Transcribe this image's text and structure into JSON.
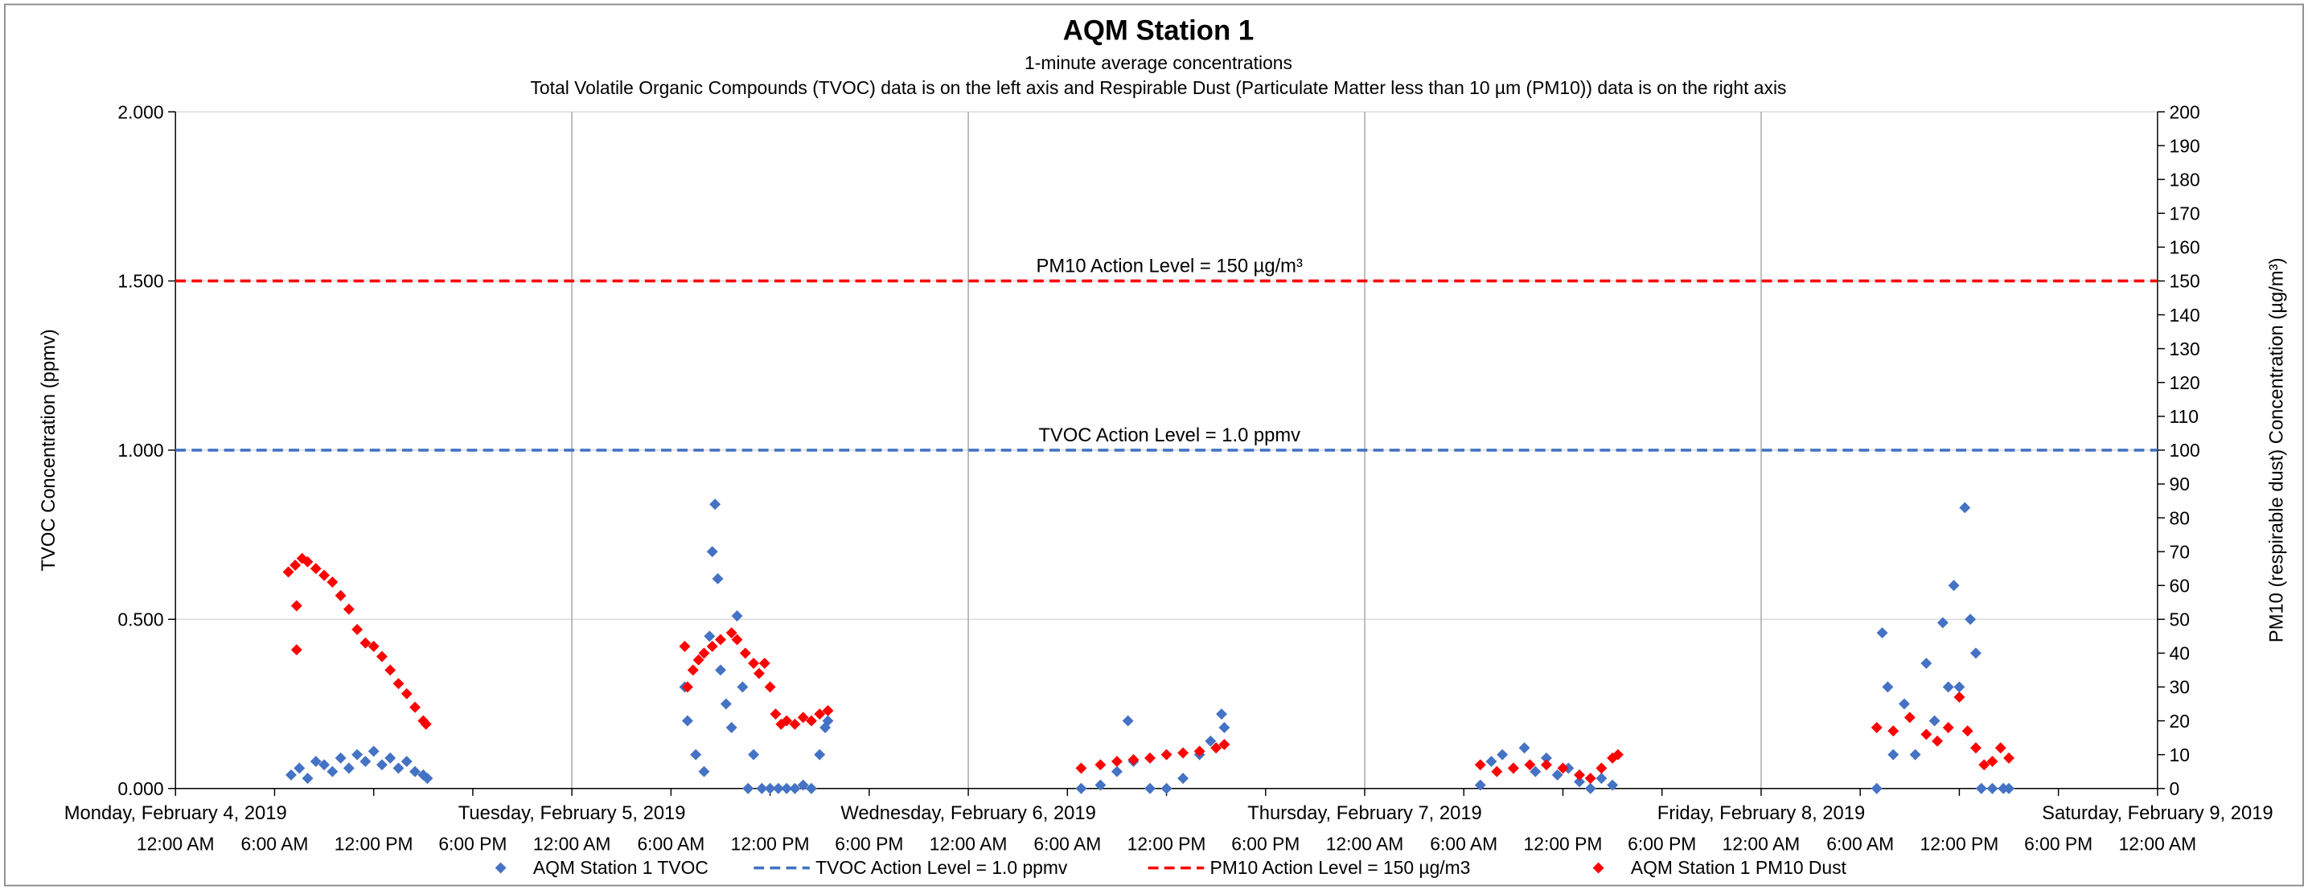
{
  "chart_data": {
    "type": "scatter",
    "title": "AQM Station 1",
    "subtitle": "1-minute average concentrations",
    "note": "Total Volatile Organic Compounds (TVOC) data is on the left axis and Respirable Dust (Particulate Matter less than 10 µm (PM10)) data is on the right axis",
    "y_label": "TVOC Concentration (ppmv)",
    "y2_label": "PM10 (respirable dust) Concentration (µg/m³)",
    "xlim": [
      "2019-02-04 00:00",
      "2019-02-09 00:00"
    ],
    "x_date_labels": [
      {
        "value": "2019-02-04 00:00",
        "label": "Monday, February 4, 2019"
      },
      {
        "value": "2019-02-05 00:00",
        "label": "Tuesday, February 5, 2019"
      },
      {
        "value": "2019-02-06 00:00",
        "label": "Wednesday, February 6, 2019"
      },
      {
        "value": "2019-02-07 00:00",
        "label": "Thursday, February 7, 2019"
      },
      {
        "value": "2019-02-08 00:00",
        "label": "Friday, February 8, 2019"
      },
      {
        "value": "2019-02-09 00:00",
        "label": "Saturday, February 9, 2019"
      }
    ],
    "xticks": [
      {
        "value": "2019-02-04 00:00",
        "label": "12:00 AM"
      },
      {
        "value": "2019-02-04 06:00",
        "label": "6:00 AM"
      },
      {
        "value": "2019-02-04 12:00",
        "label": "12:00 PM"
      },
      {
        "value": "2019-02-04 18:00",
        "label": "6:00 PM"
      },
      {
        "value": "2019-02-05 00:00",
        "label": "12:00 AM"
      },
      {
        "value": "2019-02-05 06:00",
        "label": "6:00 AM"
      },
      {
        "value": "2019-02-05 12:00",
        "label": "12:00 PM"
      },
      {
        "value": "2019-02-05 18:00",
        "label": "6:00 PM"
      },
      {
        "value": "2019-02-06 00:00",
        "label": "12:00 AM"
      },
      {
        "value": "2019-02-06 06:00",
        "label": "6:00 AM"
      },
      {
        "value": "2019-02-06 12:00",
        "label": "12:00 PM"
      },
      {
        "value": "2019-02-06 18:00",
        "label": "6:00 PM"
      },
      {
        "value": "2019-02-07 00:00",
        "label": "12:00 AM"
      },
      {
        "value": "2019-02-07 06:00",
        "label": "6:00 AM"
      },
      {
        "value": "2019-02-07 12:00",
        "label": "12:00 PM"
      },
      {
        "value": "2019-02-07 18:00",
        "label": "6:00 PM"
      },
      {
        "value": "2019-02-08 00:00",
        "label": "12:00 AM"
      },
      {
        "value": "2019-02-08 06:00",
        "label": "6:00 AM"
      },
      {
        "value": "2019-02-08 12:00",
        "label": "12:00 PM"
      },
      {
        "value": "2019-02-08 18:00",
        "label": "6:00 PM"
      },
      {
        "value": "2019-02-09 00:00",
        "label": "12:00 AM"
      }
    ],
    "ylim": [
      0,
      2
    ],
    "yticks": [
      {
        "value": 0,
        "label": "0.000"
      },
      {
        "value": 0.5,
        "label": "0.500"
      },
      {
        "value": 1,
        "label": "1.000"
      },
      {
        "value": 1.5,
        "label": "1.500"
      },
      {
        "value": 2,
        "label": "2.000"
      }
    ],
    "y2lim": [
      0,
      200
    ],
    "y2ticks": [
      0,
      10,
      20,
      30,
      40,
      50,
      60,
      70,
      80,
      90,
      100,
      110,
      120,
      130,
      140,
      150,
      160,
      170,
      180,
      190,
      200
    ],
    "grid": true,
    "legend": "bottom",
    "series": [
      {
        "name": "AQM Station 1 TVOC",
        "color": "#4472c4",
        "axis": "y",
        "x": [
          "2019-02-04 07:00",
          "2019-02-04 07:30",
          "2019-02-04 08:00",
          "2019-02-04 08:30",
          "2019-02-04 09:00",
          "2019-02-04 09:30",
          "2019-02-04 10:00",
          "2019-02-04 10:30",
          "2019-02-04 11:00",
          "2019-02-04 11:30",
          "2019-02-04 12:00",
          "2019-02-04 12:30",
          "2019-02-04 13:00",
          "2019-02-04 13:30",
          "2019-02-04 14:00",
          "2019-02-04 14:30",
          "2019-02-04 15:00",
          "2019-02-04 15:15",
          "2019-02-05 06:50",
          "2019-02-05 07:00",
          "2019-02-05 07:30",
          "2019-02-05 08:00",
          "2019-02-05 08:20",
          "2019-02-05 08:30",
          "2019-02-05 08:40",
          "2019-02-05 08:50",
          "2019-02-05 09:00",
          "2019-02-05 09:20",
          "2019-02-05 09:40",
          "2019-02-05 10:00",
          "2019-02-05 10:20",
          "2019-02-05 10:40",
          "2019-02-05 11:00",
          "2019-02-05 11:30",
          "2019-02-05 12:00",
          "2019-02-05 12:30",
          "2019-02-05 13:00",
          "2019-02-05 13:30",
          "2019-02-05 14:00",
          "2019-02-05 14:30",
          "2019-02-05 15:00",
          "2019-02-05 15:20",
          "2019-02-05 15:30",
          "2019-02-06 06:50",
          "2019-02-06 08:00",
          "2019-02-06 09:00",
          "2019-02-06 09:40",
          "2019-02-06 10:00",
          "2019-02-06 11:00",
          "2019-02-06 12:00",
          "2019-02-06 13:00",
          "2019-02-06 14:00",
          "2019-02-06 14:40",
          "2019-02-06 15:20",
          "2019-02-06 15:30",
          "2019-02-07 07:00",
          "2019-02-07 07:40",
          "2019-02-07 08:20",
          "2019-02-07 09:00",
          "2019-02-07 09:40",
          "2019-02-07 10:20",
          "2019-02-07 11:00",
          "2019-02-07 11:40",
          "2019-02-07 12:20",
          "2019-02-07 13:00",
          "2019-02-07 13:40",
          "2019-02-07 14:20",
          "2019-02-07 15:00",
          "2019-02-08 07:00",
          "2019-02-08 07:20",
          "2019-02-08 07:40",
          "2019-02-08 08:00",
          "2019-02-08 08:40",
          "2019-02-08 09:20",
          "2019-02-08 10:00",
          "2019-02-08 10:30",
          "2019-02-08 11:00",
          "2019-02-08 11:20",
          "2019-02-08 11:40",
          "2019-02-08 12:00",
          "2019-02-08 12:20",
          "2019-02-08 12:40",
          "2019-02-08 13:00",
          "2019-02-08 13:20",
          "2019-02-08 14:00",
          "2019-02-08 14:40",
          "2019-02-08 15:00"
        ],
        "values": [
          0.04,
          0.06,
          0.03,
          0.08,
          0.07,
          0.05,
          0.09,
          0.06,
          0.1,
          0.08,
          0.11,
          0.07,
          0.09,
          0.06,
          0.08,
          0.05,
          0.04,
          0.03,
          0.3,
          0.2,
          0.1,
          0.05,
          0.45,
          0.7,
          0.84,
          0.62,
          0.35,
          0.25,
          0.18,
          0.51,
          0.3,
          0,
          0.1,
          0,
          0,
          0,
          0,
          0,
          0.01,
          0,
          0.1,
          0.18,
          0.2,
          0,
          0.01,
          0.05,
          0.2,
          0.08,
          0,
          0,
          0.03,
          0.1,
          0.14,
          0.22,
          0.18,
          0.01,
          0.08,
          0.1,
          0.06,
          0.12,
          0.05,
          0.09,
          0.04,
          0.06,
          0.02,
          0,
          0.03,
          0.01,
          0,
          0.46,
          0.3,
          0.1,
          0.25,
          0.1,
          0.37,
          0.2,
          0.49,
          0.3,
          0.6,
          0.3,
          0.83,
          0.5,
          0.4,
          0,
          0,
          0,
          0
        ]
      },
      {
        "name": "AQM Station 1 PM10 Dust",
        "color": "#ff0000",
        "axis": "y2",
        "x": [
          "2019-02-04 06:50",
          "2019-02-04 07:15",
          "2019-02-04 07:20",
          "2019-02-04 07:20",
          "2019-02-04 07:40",
          "2019-02-04 08:00",
          "2019-02-04 08:30",
          "2019-02-04 09:00",
          "2019-02-04 09:30",
          "2019-02-04 10:00",
          "2019-02-04 10:30",
          "2019-02-04 11:00",
          "2019-02-04 11:30",
          "2019-02-04 12:00",
          "2019-02-04 12:30",
          "2019-02-04 13:00",
          "2019-02-04 13:30",
          "2019-02-04 14:00",
          "2019-02-04 14:30",
          "2019-02-04 15:00",
          "2019-02-04 15:10",
          "2019-02-05 06:50",
          "2019-02-05 07:00",
          "2019-02-05 07:20",
          "2019-02-05 07:40",
          "2019-02-05 08:00",
          "2019-02-05 08:30",
          "2019-02-05 09:00",
          "2019-02-05 09:40",
          "2019-02-05 10:00",
          "2019-02-05 10:30",
          "2019-02-05 11:00",
          "2019-02-05 11:20",
          "2019-02-05 11:40",
          "2019-02-05 12:00",
          "2019-02-05 12:20",
          "2019-02-05 12:40",
          "2019-02-05 13:00",
          "2019-02-05 13:30",
          "2019-02-05 14:00",
          "2019-02-05 14:30",
          "2019-02-05 15:00",
          "2019-02-05 15:30",
          "2019-02-06 06:50",
          "2019-02-06 08:00",
          "2019-02-06 09:00",
          "2019-02-06 10:00",
          "2019-02-06 11:00",
          "2019-02-06 12:00",
          "2019-02-06 13:00",
          "2019-02-06 14:00",
          "2019-02-06 15:00",
          "2019-02-06 15:30",
          "2019-02-07 07:00",
          "2019-02-07 08:00",
          "2019-02-07 09:00",
          "2019-02-07 10:00",
          "2019-02-07 11:00",
          "2019-02-07 12:00",
          "2019-02-07 13:00",
          "2019-02-07 13:40",
          "2019-02-07 14:20",
          "2019-02-07 15:00",
          "2019-02-07 15:20",
          "2019-02-08 07:00",
          "2019-02-08 08:00",
          "2019-02-08 09:00",
          "2019-02-08 10:00",
          "2019-02-08 10:40",
          "2019-02-08 11:20",
          "2019-02-08 12:00",
          "2019-02-08 12:30",
          "2019-02-08 13:00",
          "2019-02-08 13:30",
          "2019-02-08 14:00",
          "2019-02-08 14:30",
          "2019-02-08 15:00"
        ],
        "values": [
          64,
          66,
          41,
          54,
          68,
          67,
          65,
          63,
          61,
          57,
          53,
          47,
          43,
          42,
          39,
          35,
          31,
          28,
          24,
          20,
          19,
          42,
          30,
          35,
          38,
          40,
          42,
          44,
          46,
          44,
          40,
          37,
          34,
          37,
          30,
          22,
          19,
          20,
          19,
          21,
          20,
          22,
          23,
          6,
          7,
          8,
          8.5,
          9,
          10,
          10.5,
          11,
          12,
          13,
          7,
          5,
          6,
          7,
          7,
          6,
          4,
          3,
          6,
          9,
          10,
          18,
          17,
          21,
          16,
          14,
          18,
          27,
          17,
          12,
          7,
          8,
          12,
          9
        ]
      }
    ],
    "reference_lines": [
      {
        "name": "TVOC Action Level = 1.0 ppmv",
        "value": 1.0,
        "axis": "y",
        "color": "#4472c4",
        "annotation": "TVOC Action Level = 1.0 ppmv"
      },
      {
        "name": "PM10 Action Level = 150 µg/m3",
        "value": 150,
        "axis": "y2",
        "color": "#ff0000",
        "annotation": "PM10 Action Level = 150 µg/m³"
      }
    ]
  }
}
